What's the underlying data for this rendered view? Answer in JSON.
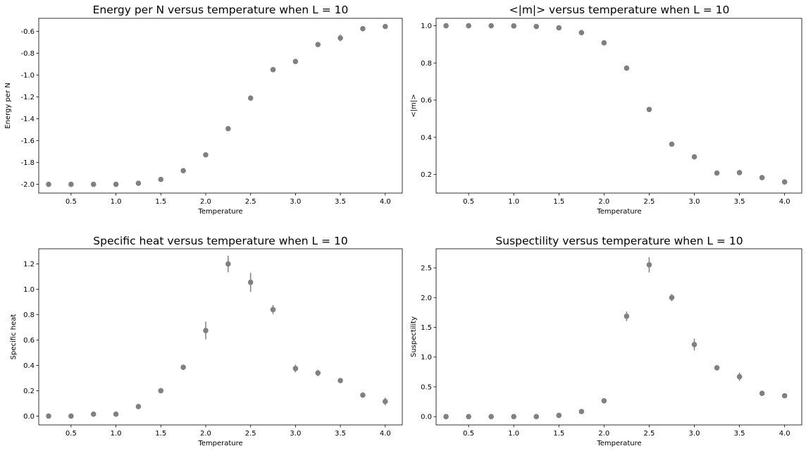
{
  "marker_color": "#808080",
  "chart_data": [
    {
      "type": "scatter",
      "title": "Energy per N versus temperature when L = 10",
      "xlabel": "Temperature",
      "ylabel": "Energy per N",
      "xlim": [
        0.14,
        4.19
      ],
      "ylim": [
        -2.08,
        -0.48
      ],
      "xticks": [
        "0.5",
        "1.0",
        "1.5",
        "2.0",
        "2.5",
        "3.0",
        "3.5",
        "4.0"
      ],
      "yticks": [
        "-2.0",
        "-1.8",
        "-1.6",
        "-1.4",
        "-1.2",
        "-1.0",
        "-0.8",
        "-0.6"
      ],
      "x": [
        0.25,
        0.5,
        0.75,
        1.0,
        1.25,
        1.5,
        1.75,
        2.0,
        2.25,
        2.5,
        2.75,
        3.0,
        3.25,
        3.5,
        3.75,
        4.0
      ],
      "y": [
        -2.0,
        -2.0,
        -2.0,
        -2.0,
        -1.99,
        -1.955,
        -1.875,
        -1.73,
        -1.49,
        -1.21,
        -0.95,
        -0.875,
        -0.72,
        -0.66,
        -0.575,
        -0.555
      ],
      "yerr": [
        0.003,
        0.003,
        0.003,
        0.003,
        0.005,
        0.006,
        0.008,
        0.01,
        0.012,
        0.012,
        0.012,
        0.01,
        0.02,
        0.03,
        0.01,
        0.008
      ]
    },
    {
      "type": "scatter",
      "title": "<|m|> versus temperature when L = 10",
      "xlabel": "Temperature",
      "ylabel": "<|m|>",
      "xlim": [
        0.14,
        4.19
      ],
      "ylim": [
        0.1,
        1.04
      ],
      "xticks": [
        "0.5",
        "1.0",
        "1.5",
        "2.0",
        "2.5",
        "3.0",
        "3.5",
        "4.0"
      ],
      "yticks": [
        "0.2",
        "0.4",
        "0.6",
        "0.8",
        "1.0"
      ],
      "x": [
        0.25,
        0.5,
        0.75,
        1.0,
        1.25,
        1.5,
        1.75,
        2.0,
        2.25,
        2.5,
        2.75,
        3.0,
        3.25,
        3.5,
        3.75,
        4.0
      ],
      "y": [
        1.0,
        1.0,
        1.0,
        0.999,
        0.996,
        0.989,
        0.963,
        0.908,
        0.772,
        0.55,
        0.363,
        0.295,
        0.208,
        0.21,
        0.183,
        0.16
      ],
      "yerr": [
        0.001,
        0.001,
        0.001,
        0.001,
        0.002,
        0.003,
        0.005,
        0.006,
        0.008,
        0.012,
        0.008,
        0.006,
        0.012,
        0.006,
        0.005,
        0.008
      ]
    },
    {
      "type": "scatter",
      "title": "Specific heat versus temperature when L = 10",
      "xlabel": "Temperature",
      "ylabel": "Specific heat",
      "xlim": [
        0.14,
        4.19
      ],
      "ylim": [
        -0.07,
        1.32
      ],
      "xticks": [
        "0.5",
        "1.0",
        "1.5",
        "2.0",
        "2.5",
        "3.0",
        "3.5",
        "4.0"
      ],
      "yticks": [
        "0.0",
        "0.2",
        "0.4",
        "0.6",
        "0.8",
        "1.0",
        "1.2"
      ],
      "x": [
        0.25,
        0.5,
        0.75,
        1.0,
        1.25,
        1.5,
        1.75,
        2.0,
        2.25,
        2.5,
        2.75,
        3.0,
        3.25,
        3.5,
        3.75,
        4.0
      ],
      "y": [
        0.0,
        0.0,
        0.015,
        0.015,
        0.075,
        0.2,
        0.385,
        0.675,
        1.2,
        1.055,
        0.84,
        0.375,
        0.34,
        0.28,
        0.165,
        0.115
      ],
      "yerr": [
        0.003,
        0.003,
        0.01,
        0.01,
        0.01,
        0.01,
        0.015,
        0.07,
        0.065,
        0.075,
        0.035,
        0.03,
        0.025,
        0.01,
        0.01,
        0.03
      ]
    },
    {
      "type": "scatter",
      "title": "Suspectility versus temperature when L = 10",
      "xlabel": "Temperature",
      "ylabel": "Suspectility",
      "xlim": [
        0.14,
        4.19
      ],
      "ylim": [
        -0.14,
        2.82
      ],
      "xticks": [
        "0.5",
        "1.0",
        "1.5",
        "2.0",
        "2.5",
        "3.0",
        "3.5",
        "4.0"
      ],
      "yticks": [
        "0.0",
        "0.5",
        "1.0",
        "1.5",
        "2.0",
        "2.5"
      ],
      "x": [
        0.25,
        0.5,
        0.75,
        1.0,
        1.25,
        1.5,
        1.75,
        2.0,
        2.25,
        2.5,
        2.75,
        3.0,
        3.25,
        3.5,
        3.75,
        4.0
      ],
      "y": [
        0.0,
        0.0,
        0.0,
        0.0,
        0.0,
        0.02,
        0.085,
        0.265,
        1.685,
        2.55,
        2.0,
        1.21,
        0.82,
        0.67,
        0.39,
        0.35
      ],
      "yerr": [
        0.003,
        0.003,
        0.003,
        0.003,
        0.005,
        0.01,
        0.02,
        0.04,
        0.08,
        0.13,
        0.06,
        0.1,
        0.04,
        0.07,
        0.02,
        0.035
      ]
    }
  ]
}
